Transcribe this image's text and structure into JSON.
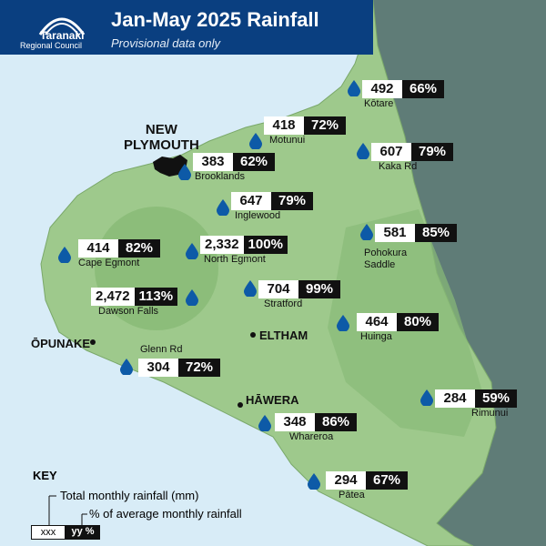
{
  "header": {
    "title": "Jan-May 2025 Rainfall",
    "subtitle": "Provisional data only",
    "logo_line1": "Taranaki",
    "logo_line2": "Regional Council"
  },
  "colors": {
    "header_bg": "#0a3f80",
    "sea": "#d8ecf7",
    "land": "#9ec98c",
    "land_dark": "#7eb26f",
    "neighbour_land": "#5f7c77",
    "drop": "#0d5aa7"
  },
  "map_labels": {
    "new_plymouth_line1": "NEW",
    "new_plymouth_line2": "PLYMOUTH",
    "opunake": "ŌPUNAKE",
    "eltham": "ELTHAM",
    "hawera": "HĀWERA"
  },
  "stations": [
    {
      "name": "Kōtare",
      "total": "492",
      "pct": "66%"
    },
    {
      "name": "Motunui",
      "total": "418",
      "pct": "72%"
    },
    {
      "name": "Kaka Rd",
      "total": "607",
      "pct": "79%"
    },
    {
      "name": "Brooklands",
      "total": "383",
      "pct": "62%"
    },
    {
      "name": "Inglewood",
      "total": "647",
      "pct": "79%"
    },
    {
      "name": "Pohokura Saddle",
      "total": "581",
      "pct": "85%"
    },
    {
      "name": "Cape Egmont",
      "total": "414",
      "pct": "82%"
    },
    {
      "name": "North Egmont",
      "total": "2,332",
      "pct": "100%"
    },
    {
      "name": "Dawson Falls",
      "total": "2,472",
      "pct": "113%"
    },
    {
      "name": "Stratford",
      "total": "704",
      "pct": "99%"
    },
    {
      "name": "Huinga",
      "total": "464",
      "pct": "80%"
    },
    {
      "name": "Glenn Rd",
      "total": "304",
      "pct": "72%"
    },
    {
      "name": "Rimunui",
      "total": "284",
      "pct": "59%"
    },
    {
      "name": "Whareroa",
      "total": "348",
      "pct": "86%"
    },
    {
      "name": "Pātea",
      "total": "294",
      "pct": "67%"
    }
  ],
  "key": {
    "title": "KEY",
    "total_label": "Total monthly rainfall (mm)",
    "pct_label": "% of average monthly rainfall",
    "sample_total": "xxx",
    "sample_pct": "yy %"
  }
}
